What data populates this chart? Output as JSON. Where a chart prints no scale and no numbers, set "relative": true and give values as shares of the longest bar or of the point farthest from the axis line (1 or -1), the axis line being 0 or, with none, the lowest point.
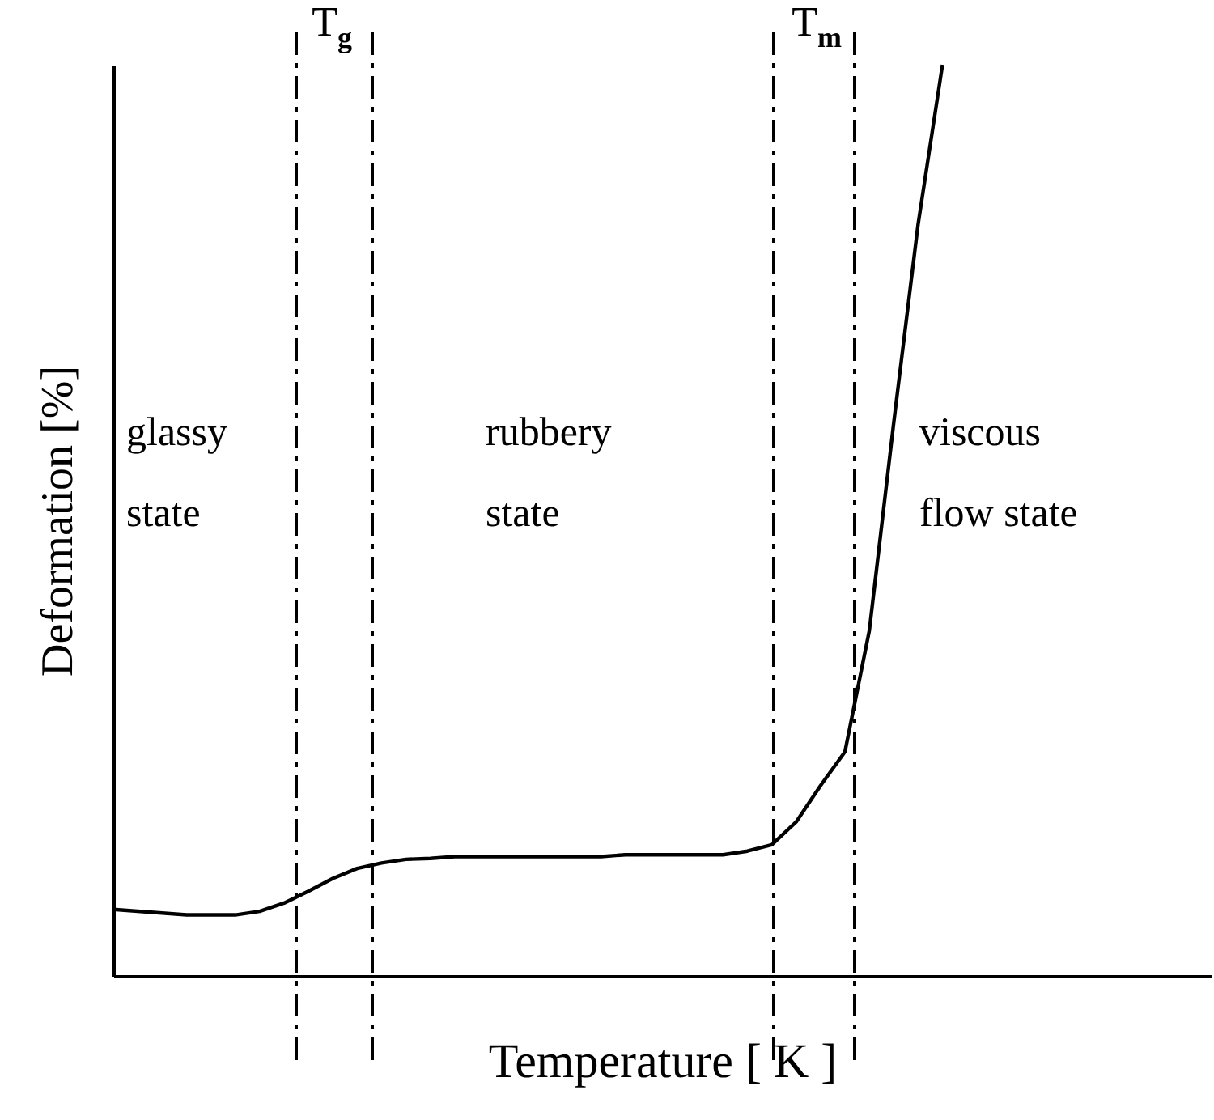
{
  "chart_data": {
    "type": "line",
    "relative": true,
    "xlabel": "Temperature [ K ]",
    "ylabel": "Deformation [%]",
    "tick_labels": false,
    "grid": false,
    "legend": false,
    "line_style": "solid",
    "categories": [
      null,
      null,
      null,
      null,
      null,
      null,
      null,
      null,
      null,
      null,
      null,
      null,
      null,
      null,
      null,
      null,
      null,
      null,
      null,
      null,
      null,
      null,
      null,
      null,
      null,
      null,
      null,
      null,
      null,
      null,
      null,
      null,
      null,
      null,
      null,
      null,
      null,
      null,
      null,
      null,
      null,
      null,
      null,
      null,
      null,
      null
    ],
    "series": [
      {
        "color": "#000000",
        "values": [
          0.073,
          0.071,
          0.069,
          0.067,
          0.067,
          0.067,
          0.071,
          0.08,
          0.093,
          0.107,
          0.118,
          0.124,
          0.128,
          0.129,
          0.131,
          0.131,
          0.131,
          0.131,
          0.131,
          0.131,
          0.131,
          0.133,
          0.133,
          0.133,
          0.133,
          0.133,
          0.137,
          0.144,
          0.169,
          0.209,
          0.246,
          0.379,
          0.607,
          0.825,
          1.0,
          null,
          null,
          null,
          null,
          null,
          null,
          null,
          null,
          null,
          null,
          null
        ]
      }
    ],
    "annotations": [
      "T$_{g}$",
      "T$_{m}$",
      "glassy\nstate",
      "rubbery\nstate",
      "viscous\nflow state"
    ]
  }
}
